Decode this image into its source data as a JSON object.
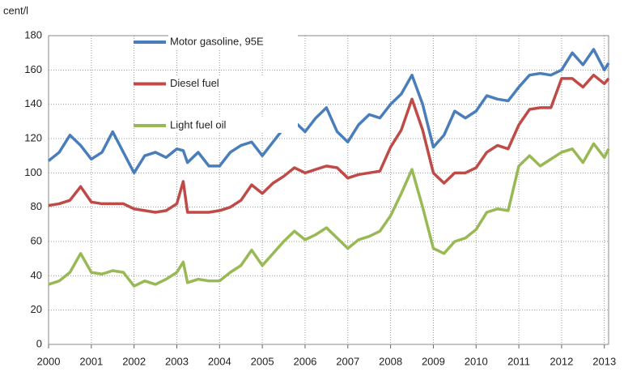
{
  "chart_data": {
    "type": "line",
    "y_label": "cent/l",
    "x": [
      2000,
      2000.25,
      2000.5,
      2000.75,
      2001,
      2001.25,
      2001.5,
      2001.75,
      2002,
      2002.25,
      2002.5,
      2002.75,
      2003,
      2003.15,
      2003.25,
      2003.5,
      2003.75,
      2004,
      2004.25,
      2004.5,
      2004.75,
      2005,
      2005.25,
      2005.5,
      2005.75,
      2006,
      2006.25,
      2006.5,
      2006.75,
      2007,
      2007.25,
      2007.5,
      2007.75,
      2008,
      2008.25,
      2008.5,
      2008.75,
      2009,
      2009.25,
      2009.5,
      2009.75,
      2010,
      2010.25,
      2010.5,
      2010.75,
      2011,
      2011.25,
      2011.5,
      2011.75,
      2012,
      2012.25,
      2012.5,
      2012.75,
      2013,
      2013.1
    ],
    "series": [
      {
        "name": "Motor gasoline, 95E",
        "color": "#4a7ebb",
        "values": [
          107,
          112,
          122,
          116,
          108,
          112,
          124,
          112,
          100,
          110,
          112,
          109,
          114,
          113,
          106,
          112,
          104,
          104,
          112,
          116,
          118,
          110,
          118,
          126,
          130,
          124,
          132,
          138,
          124,
          118,
          128,
          134,
          132,
          140,
          146,
          157,
          140,
          115,
          122,
          136,
          132,
          136,
          145,
          143,
          142,
          150,
          157,
          158,
          157,
          160,
          170,
          163,
          172,
          160,
          164
        ]
      },
      {
        "name": "Diesel fuel",
        "color": "#be4b48",
        "values": [
          81,
          82,
          84,
          92,
          83,
          82,
          82,
          82,
          79,
          78,
          77,
          78,
          82,
          95,
          77,
          77,
          77,
          78,
          80,
          84,
          93,
          88,
          94,
          98,
          103,
          100,
          102,
          104,
          103,
          97,
          99,
          100,
          101,
          115,
          125,
          143,
          125,
          100,
          94,
          100,
          100,
          103,
          112,
          116,
          114,
          128,
          137,
          138,
          138,
          155,
          155,
          150,
          157,
          152,
          155
        ]
      },
      {
        "name": "Light fuel oil",
        "color": "#98b954",
        "values": [
          35,
          37,
          42,
          53,
          42,
          41,
          43,
          42,
          34,
          37,
          35,
          38,
          42,
          48,
          36,
          38,
          37,
          37,
          42,
          46,
          55,
          46,
          53,
          60,
          66,
          61,
          64,
          68,
          62,
          56,
          61,
          63,
          66,
          75,
          88,
          102,
          80,
          56,
          53,
          60,
          62,
          67,
          77,
          79,
          78,
          104,
          110,
          104,
          108,
          112,
          114,
          106,
          117,
          109,
          114
        ]
      }
    ],
    "xlim": [
      2000,
      2013.1
    ],
    "xticks": [
      2000,
      2001,
      2002,
      2003,
      2004,
      2005,
      2006,
      2007,
      2008,
      2009,
      2010,
      2011,
      2012,
      2013
    ],
    "ylim": [
      0,
      180
    ],
    "yticks": [
      0,
      20,
      40,
      60,
      80,
      100,
      120,
      140,
      160,
      180
    ],
    "grid": true,
    "legend": "top"
  }
}
